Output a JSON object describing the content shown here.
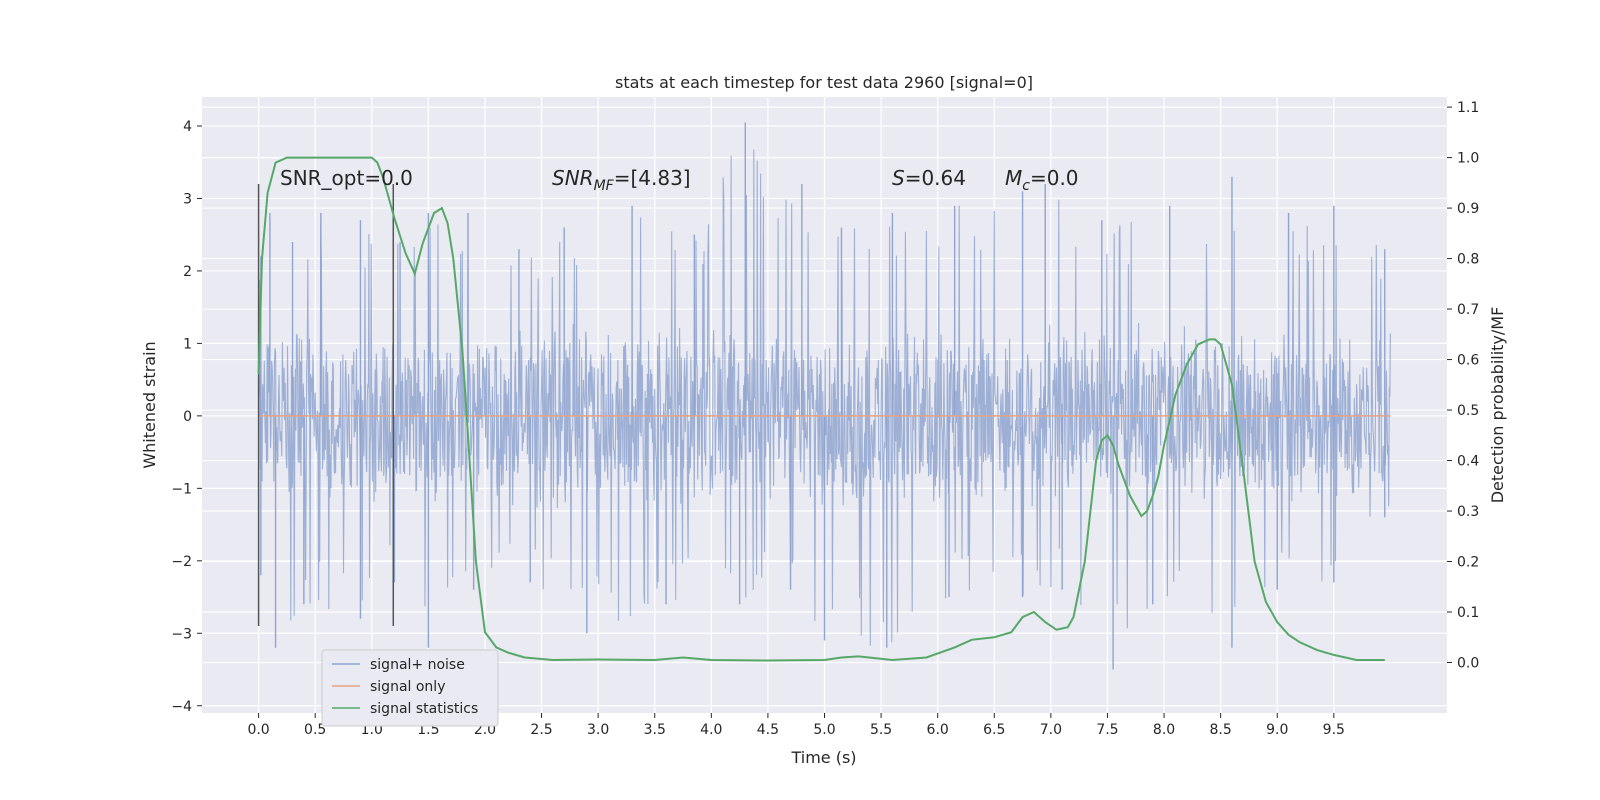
{
  "chart_data": {
    "type": "line",
    "title": "stats at each timestep for test data 2960 [signal=0]",
    "xlabel": "Time (s)",
    "ylabel": "Whitened strain",
    "y2label": "Detection probability/MF",
    "xlim": [
      -0.5,
      10.5
    ],
    "ylim": [
      -4.1,
      4.4
    ],
    "y2lim": [
      -0.1,
      1.12
    ],
    "x_ticks": [
      "0.0",
      "0.5",
      "1.0",
      "1.5",
      "2.0",
      "2.5",
      "3.0",
      "3.5",
      "4.0",
      "4.5",
      "5.0",
      "5.5",
      "6.0",
      "6.5",
      "7.0",
      "7.5",
      "8.0",
      "8.5",
      "9.0",
      "9.5"
    ],
    "y_ticks": [
      "4",
      "3",
      "2",
      "1",
      "0",
      "−1",
      "−2",
      "−3",
      "−4"
    ],
    "y2_ticks": [
      "1.1",
      "1.0",
      "0.9",
      "0.8",
      "0.7",
      "0.6",
      "0.5",
      "0.4",
      "0.3",
      "0.2",
      "0.1",
      "0.0"
    ],
    "grid": true,
    "legend_position": "lower-left",
    "annotations": {
      "snr_opt": "SNR_opt=0.0",
      "snr_mf_prefix": "SNR",
      "snr_mf_sub": "MF",
      "snr_mf_suffix": "=[4.83]",
      "s_var": "S",
      "s_value": "=0.64",
      "mc_var": "M",
      "mc_sub": "c",
      "mc_value": "=0.0"
    },
    "vlines_x": [
      0.0,
      1.19
    ],
    "series": [
      {
        "name": "signal+ noise",
        "color": "#8fa5cf",
        "axis": "left",
        "description_values": {
          "x_range": [
            0.0,
            10.0
          ],
          "typical_amplitude": 1.3,
          "upper_envelope_peaks": [
            [
              0.02,
              2.2
            ],
            [
              0.1,
              2.8
            ],
            [
              0.3,
              2.4
            ],
            [
              0.55,
              2.8
            ],
            [
              0.9,
              2.7
            ],
            [
              1.25,
              2.4
            ],
            [
              1.5,
              2.8
            ],
            [
              1.85,
              2.8
            ],
            [
              2.3,
              2.3
            ],
            [
              2.7,
              2.6
            ],
            [
              3.3,
              2.9
            ],
            [
              3.85,
              2.5
            ],
            [
              4.3,
              4.05
            ],
            [
              4.8,
              3.2
            ],
            [
              5.15,
              2.6
            ],
            [
              5.6,
              2.8
            ],
            [
              6.15,
              2.9
            ],
            [
              6.75,
              3.1
            ],
            [
              6.95,
              3.2
            ],
            [
              7.45,
              2.7
            ],
            [
              8.05,
              2.9
            ],
            [
              8.6,
              3.3
            ],
            [
              9.1,
              2.8
            ],
            [
              9.5,
              2.9
            ],
            [
              9.95,
              2.3
            ]
          ],
          "lower_envelope_peaks": [
            [
              0.02,
              -2.2
            ],
            [
              0.15,
              -3.2
            ],
            [
              0.4,
              -2.6
            ],
            [
              0.9,
              -2.8
            ],
            [
              1.2,
              -2.3
            ],
            [
              1.5,
              -3.2
            ],
            [
              1.9,
              -2.4
            ],
            [
              2.4,
              -2.3
            ],
            [
              2.9,
              -3.0
            ],
            [
              3.6,
              -2.6
            ],
            [
              4.25,
              -2.6
            ],
            [
              4.7,
              -2.4
            ],
            [
              5.0,
              -3.1
            ],
            [
              5.55,
              -3.2
            ],
            [
              6.1,
              -2.5
            ],
            [
              6.75,
              -2.5
            ],
            [
              7.1,
              -2.4
            ],
            [
              7.55,
              -3.5
            ],
            [
              7.9,
              -2.6
            ],
            [
              8.6,
              -3.2
            ],
            [
              9.0,
              -2.4
            ],
            [
              9.5,
              -2.3
            ],
            [
              9.95,
              -1.4
            ]
          ]
        }
      },
      {
        "name": "signal only",
        "color": "#e5a386",
        "axis": "left",
        "x": [
          0.0,
          10.0
        ],
        "y": [
          0.0,
          0.0
        ]
      },
      {
        "name": "signal statistics",
        "color": "#55a868",
        "axis": "right",
        "x": [
          0.0,
          0.03,
          0.08,
          0.15,
          0.25,
          0.5,
          0.8,
          1.0,
          1.05,
          1.1,
          1.15,
          1.2,
          1.3,
          1.38,
          1.45,
          1.55,
          1.62,
          1.67,
          1.72,
          1.8,
          1.85,
          1.92,
          2.0,
          2.1,
          2.2,
          2.35,
          2.6,
          3.0,
          3.5,
          3.75,
          3.85,
          4.0,
          4.5,
          5.0,
          5.15,
          5.3,
          5.6,
          5.9,
          6.15,
          6.3,
          6.5,
          6.65,
          6.75,
          6.85,
          6.95,
          7.05,
          7.15,
          7.2,
          7.3,
          7.4,
          7.45,
          7.5,
          7.55,
          7.6,
          7.7,
          7.8,
          7.85,
          7.9,
          7.95,
          8.0,
          8.1,
          8.2,
          8.3,
          8.4,
          8.45,
          8.5,
          8.6,
          8.7,
          8.8,
          8.9,
          9.0,
          9.1,
          9.2,
          9.35,
          9.5,
          9.7,
          9.95
        ],
        "y": [
          0.57,
          0.8,
          0.93,
          0.99,
          1.0,
          1.0,
          1.0,
          1.0,
          0.99,
          0.96,
          0.92,
          0.88,
          0.81,
          0.77,
          0.83,
          0.89,
          0.9,
          0.87,
          0.8,
          0.62,
          0.45,
          0.2,
          0.06,
          0.03,
          0.02,
          0.01,
          0.005,
          0.006,
          0.005,
          0.01,
          0.008,
          0.005,
          0.004,
          0.005,
          0.01,
          0.012,
          0.005,
          0.01,
          0.03,
          0.045,
          0.05,
          0.06,
          0.09,
          0.1,
          0.08,
          0.065,
          0.07,
          0.09,
          0.2,
          0.4,
          0.44,
          0.45,
          0.43,
          0.39,
          0.33,
          0.29,
          0.3,
          0.33,
          0.37,
          0.43,
          0.53,
          0.59,
          0.63,
          0.64,
          0.64,
          0.63,
          0.55,
          0.38,
          0.2,
          0.12,
          0.08,
          0.055,
          0.04,
          0.025,
          0.015,
          0.005,
          0.005
        ]
      }
    ]
  }
}
